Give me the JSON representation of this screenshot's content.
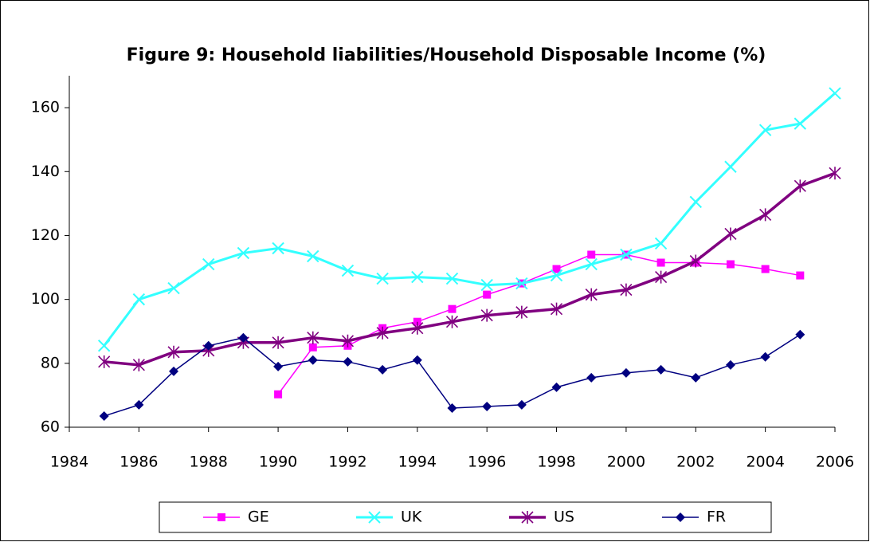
{
  "chart_data": {
    "type": "line",
    "title": "Figure 9: Household liabilities/Household Disposable Income (%)",
    "x": [
      1985,
      1986,
      1987,
      1988,
      1989,
      1990,
      1991,
      1992,
      1993,
      1994,
      1995,
      1996,
      1997,
      1998,
      1999,
      2000,
      2001,
      2002,
      2003,
      2004,
      2005,
      2006
    ],
    "series": [
      {
        "name": "GE",
        "color": "#ff00ff",
        "marker": "square",
        "values": [
          null,
          null,
          null,
          null,
          null,
          70.3,
          85,
          85.5,
          91,
          93,
          97,
          101.5,
          105,
          109.5,
          114,
          114,
          111.5,
          111.5,
          111,
          109.5,
          107.5,
          null
        ]
      },
      {
        "name": "UK",
        "color": "#33ffff",
        "marker": "x",
        "values": [
          85.5,
          100,
          103.5,
          111,
          114.5,
          116,
          113.5,
          109,
          106.5,
          107,
          106.5,
          104.5,
          105,
          107.5,
          111,
          114,
          117.5,
          130.5,
          141.5,
          153,
          155,
          164.5
        ]
      },
      {
        "name": "US",
        "color": "#800080",
        "marker": "star",
        "values": [
          80.5,
          79.5,
          83.5,
          84,
          86.5,
          86.5,
          88,
          87,
          89.5,
          91,
          93,
          95,
          96,
          97,
          101.5,
          103,
          107,
          112,
          120.5,
          126.5,
          135.5,
          139.5
        ]
      },
      {
        "name": "FR",
        "color": "#000080",
        "marker": "diamond",
        "values": [
          63.5,
          67,
          77.5,
          85.5,
          88,
          79,
          81,
          80.5,
          78,
          81,
          66,
          66.5,
          67,
          72.5,
          75.5,
          77,
          78,
          75.5,
          79.5,
          82,
          89,
          null
        ]
      }
    ],
    "xlim": [
      1984,
      2006
    ],
    "xticks": [
      1984,
      1986,
      1988,
      1990,
      1992,
      1994,
      1996,
      1998,
      2000,
      2002,
      2004,
      2006
    ],
    "ylim": [
      60,
      170
    ],
    "yticks": [
      60,
      80,
      100,
      120,
      140,
      160
    ],
    "legend": "bottom"
  }
}
